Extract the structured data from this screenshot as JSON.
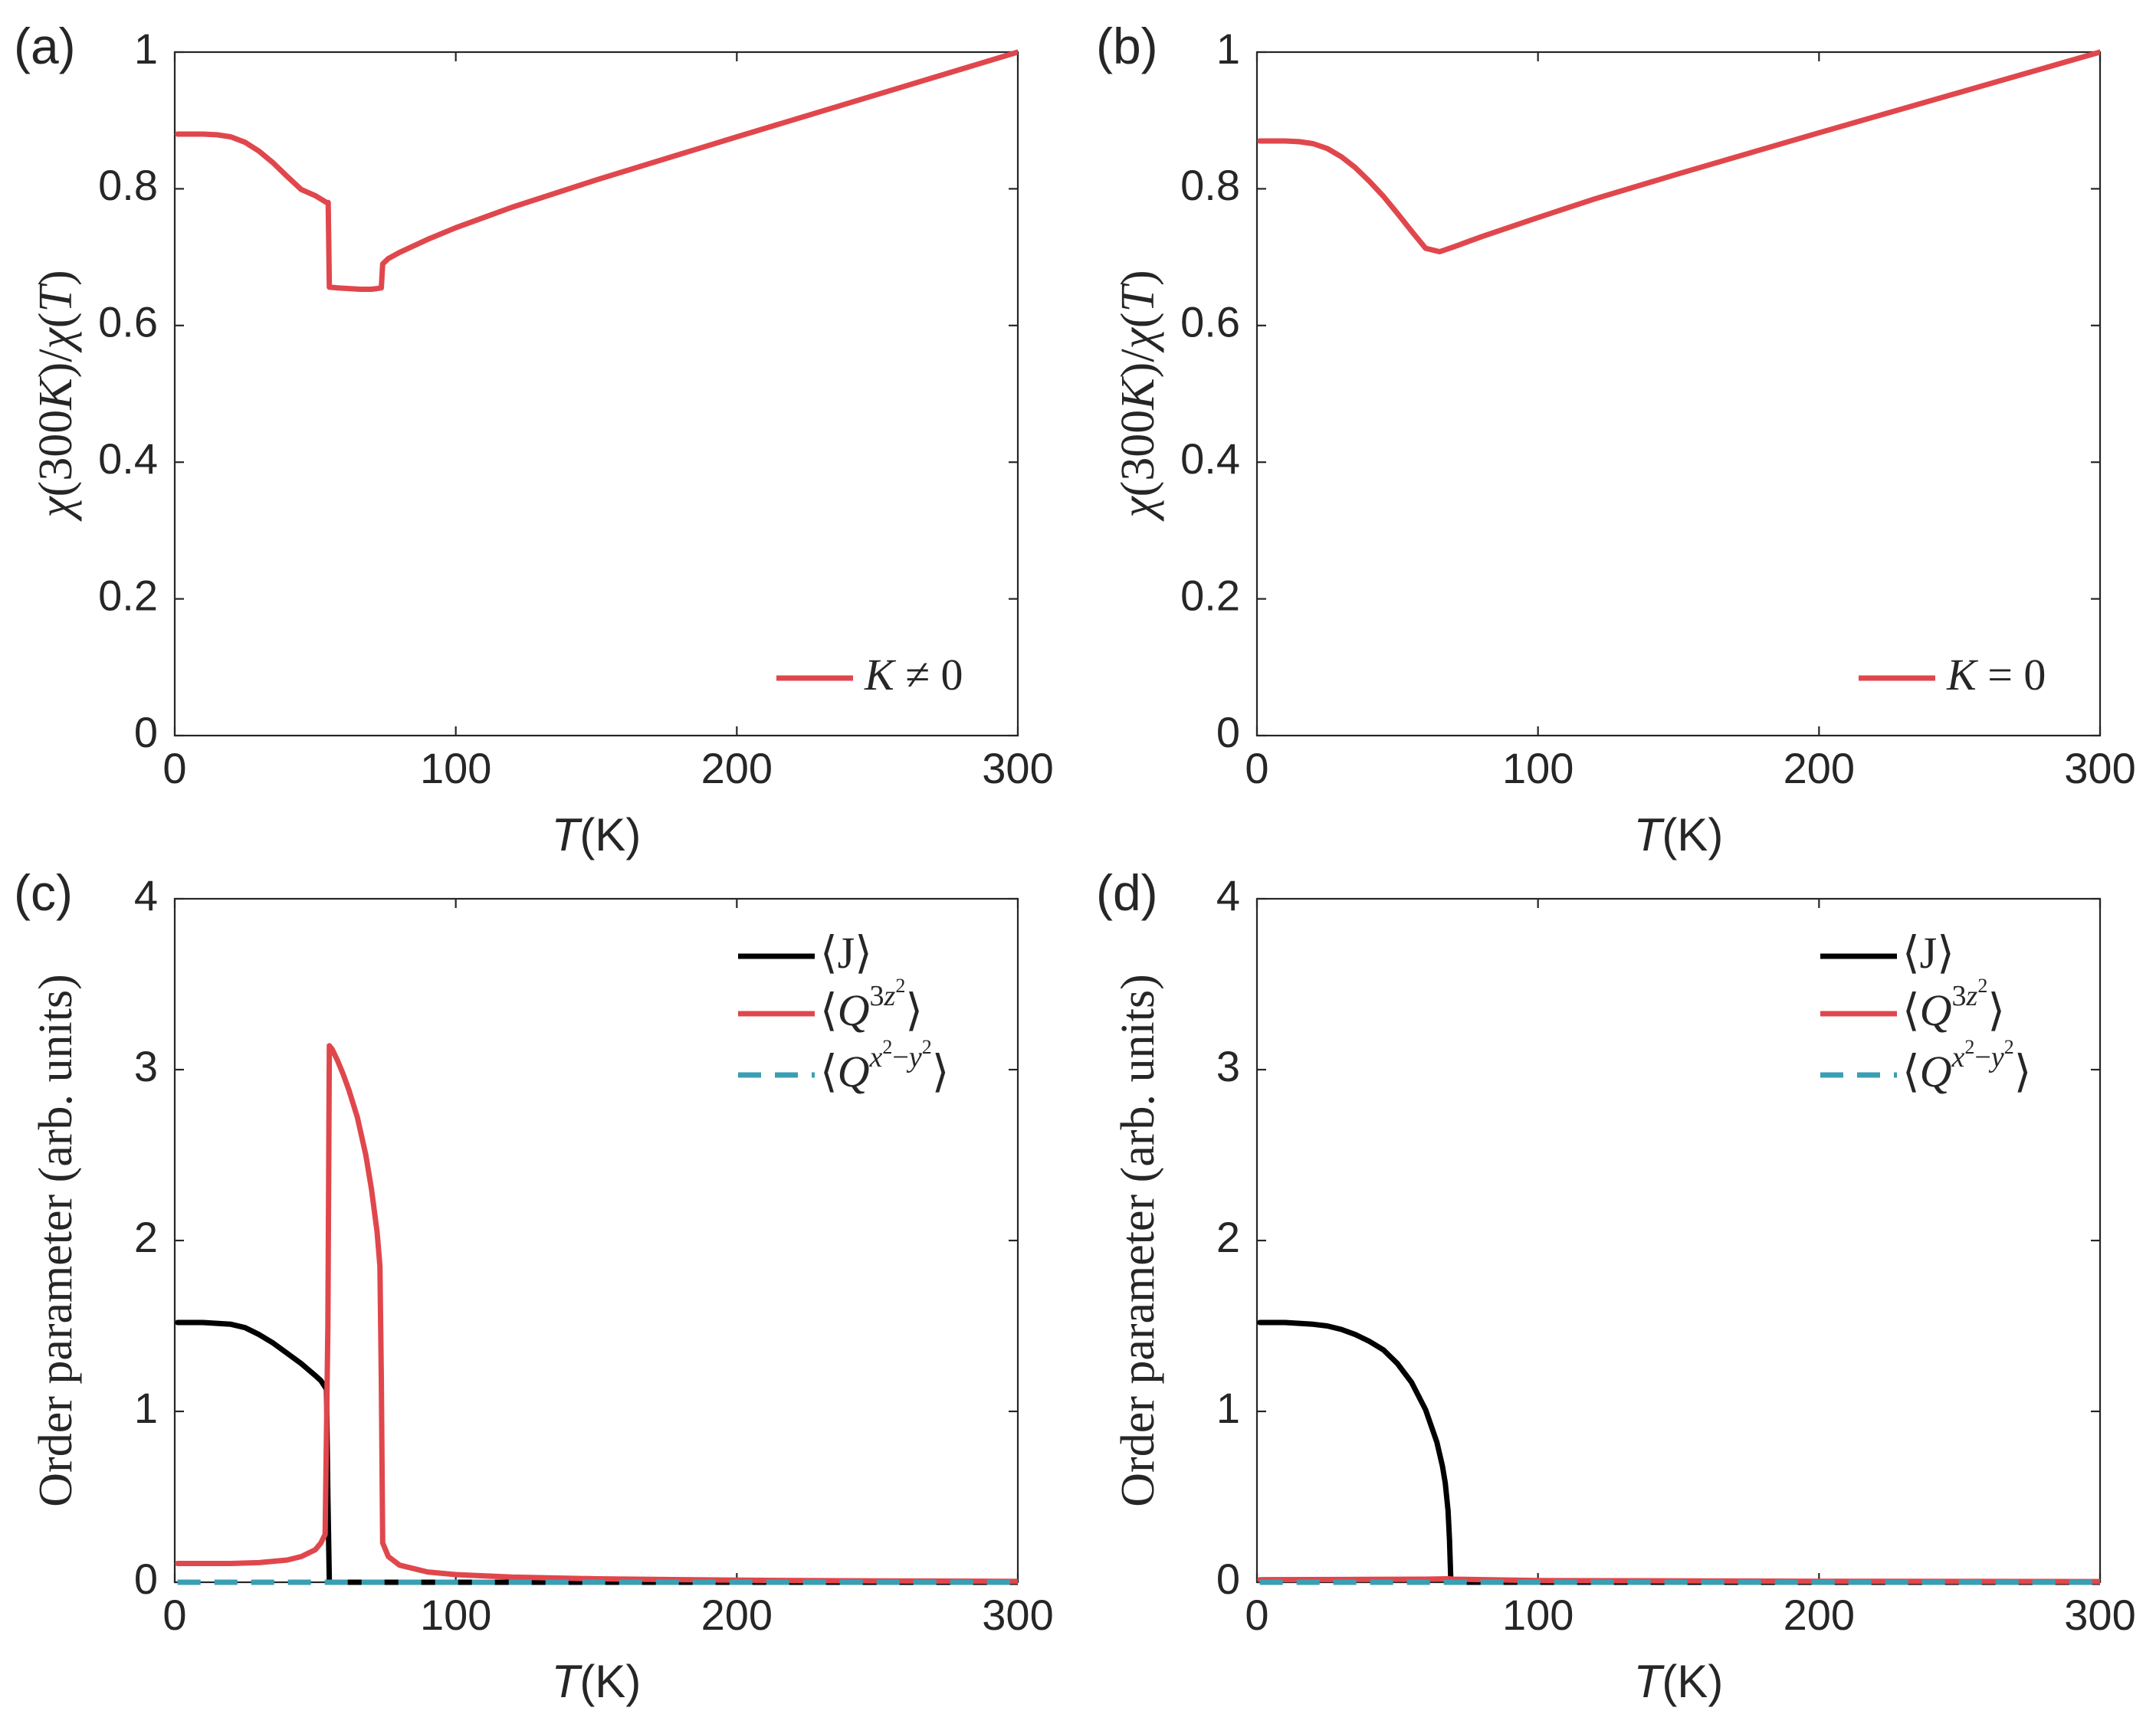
{
  "colors": {
    "red": "#e0474c",
    "black": "#000000",
    "teal": "#3a9fb4",
    "axis": "#262626"
  },
  "chart_data": [
    {
      "panel": "(a)",
      "type": "line",
      "xlabel_italic": "T",
      "xlabel_unit": "(K)",
      "ylabel": "χ(300K)/χ(T)",
      "xlim": [
        0,
        300
      ],
      "ylim": [
        0,
        1
      ],
      "xticks": [
        "0",
        "100",
        "200",
        "300"
      ],
      "yticks": [
        "0",
        "0.2",
        "0.4",
        "0.6",
        "0.8",
        "1"
      ],
      "grid": false,
      "legend_position": "bottom-right",
      "series": [
        {
          "name": "K ≠ 0",
          "color": "red",
          "x": [
            1,
            5,
            10,
            15,
            20,
            25,
            30,
            35,
            40,
            45,
            50,
            54,
            54.6,
            55,
            58,
            62,
            66,
            70,
            72,
            73.5,
            74,
            76,
            80,
            90,
            100,
            120,
            150,
            200,
            250,
            300
          ],
          "y": [
            0.88,
            0.88,
            0.88,
            0.879,
            0.876,
            0.868,
            0.855,
            0.838,
            0.818,
            0.799,
            0.79,
            0.78,
            0.78,
            0.656,
            0.655,
            0.654,
            0.653,
            0.653,
            0.654,
            0.655,
            0.69,
            0.698,
            0.707,
            0.726,
            0.743,
            0.773,
            0.813,
            0.876,
            0.938,
            1.0
          ]
        }
      ]
    },
    {
      "panel": "(b)",
      "type": "line",
      "xlabel_italic": "T",
      "xlabel_unit": "(K)",
      "ylabel": "χ(300K)/χ(T)",
      "xlim": [
        0,
        300
      ],
      "ylim": [
        0,
        1
      ],
      "xticks": [
        "0",
        "100",
        "200",
        "300"
      ],
      "yticks": [
        "0",
        "0.2",
        "0.4",
        "0.6",
        "0.8",
        "1"
      ],
      "grid": false,
      "legend_position": "bottom-right",
      "series": [
        {
          "name": "K = 0",
          "color": "red",
          "x": [
            1,
            5,
            10,
            15,
            20,
            25,
            30,
            35,
            40,
            45,
            50,
            55,
            60,
            65,
            70,
            80,
            100,
            120,
            150,
            200,
            250,
            300
          ],
          "y": [
            0.87,
            0.87,
            0.87,
            0.869,
            0.866,
            0.859,
            0.847,
            0.831,
            0.811,
            0.789,
            0.764,
            0.738,
            0.713,
            0.708,
            0.715,
            0.73,
            0.758,
            0.785,
            0.822,
            0.882,
            0.941,
            1.0
          ]
        }
      ]
    },
    {
      "panel": "(c)",
      "type": "line",
      "xlabel_italic": "T",
      "xlabel_unit": "(K)",
      "ylabel": "Order parameter (arb. units)",
      "xlim": [
        0,
        300
      ],
      "ylim": [
        0,
        4
      ],
      "xticks": [
        "0",
        "100",
        "200",
        "300"
      ],
      "yticks": [
        "0",
        "1",
        "2",
        "3",
        "4"
      ],
      "grid": false,
      "legend_position": "top-right",
      "series": [
        {
          "name": "⟨J⟩",
          "color": "black",
          "dash": false,
          "x": [
            1,
            10,
            20,
            25,
            30,
            35,
            40,
            45,
            50,
            52,
            54,
            54.5,
            55,
            56,
            60,
            100,
            200,
            300
          ],
          "y": [
            1.52,
            1.52,
            1.51,
            1.49,
            1.45,
            1.4,
            1.34,
            1.28,
            1.21,
            1.18,
            1.13,
            0.5,
            0.0,
            0.0,
            0.0,
            0.0,
            0.0,
            0.0
          ]
        },
        {
          "name": "⟨Q3z²⟩",
          "color": "red",
          "dash": false,
          "x": [
            1,
            20,
            30,
            40,
            45,
            50,
            52,
            53.5,
            54.5,
            55,
            56,
            58,
            60,
            62,
            65,
            68,
            70,
            72,
            73,
            73.5,
            74,
            76,
            80,
            90,
            100,
            120,
            150,
            200,
            250,
            300
          ],
          "y": [
            0.11,
            0.11,
            0.115,
            0.13,
            0.15,
            0.19,
            0.23,
            0.28,
            1.5,
            3.14,
            3.12,
            3.05,
            2.97,
            2.88,
            2.72,
            2.5,
            2.3,
            2.05,
            1.85,
            1.2,
            0.23,
            0.15,
            0.1,
            0.06,
            0.045,
            0.03,
            0.02,
            0.012,
            0.008,
            0.005
          ]
        },
        {
          "name": "⟨Qx²−y²⟩",
          "color": "teal",
          "dash": true,
          "x": [
            1,
            300
          ],
          "y": [
            0.0,
            0.0
          ]
        }
      ]
    },
    {
      "panel": "(d)",
      "type": "line",
      "xlabel_italic": "T",
      "xlabel_unit": "(K)",
      "ylabel": "Order parameter (arb. units)",
      "xlim": [
        0,
        300
      ],
      "ylim": [
        0,
        4
      ],
      "xticks": [
        "0",
        "100",
        "200",
        "300"
      ],
      "yticks": [
        "0",
        "1",
        "2",
        "3",
        "4"
      ],
      "grid": false,
      "legend_position": "top-right",
      "series": [
        {
          "name": "⟨J⟩",
          "color": "black",
          "dash": false,
          "x": [
            1,
            10,
            20,
            25,
            30,
            35,
            40,
            45,
            50,
            55,
            60,
            64,
            66,
            67,
            68,
            68.5,
            69,
            70,
            100,
            200,
            300
          ],
          "y": [
            1.52,
            1.52,
            1.51,
            1.5,
            1.48,
            1.45,
            1.41,
            1.36,
            1.28,
            1.17,
            1.01,
            0.82,
            0.68,
            0.58,
            0.42,
            0.25,
            0.0,
            0.0,
            0.0,
            0.0,
            0.0
          ]
        },
        {
          "name": "⟨Q3z²⟩",
          "color": "red",
          "dash": false,
          "x": [
            1,
            30,
            60,
            68,
            70,
            100,
            200,
            300
          ],
          "y": [
            0.015,
            0.016,
            0.018,
            0.02,
            0.018,
            0.01,
            0.006,
            0.004
          ]
        },
        {
          "name": "⟨Qx²−y²⟩",
          "color": "teal",
          "dash": true,
          "x": [
            1,
            300
          ],
          "y": [
            0.0,
            0.0
          ]
        }
      ]
    }
  ]
}
